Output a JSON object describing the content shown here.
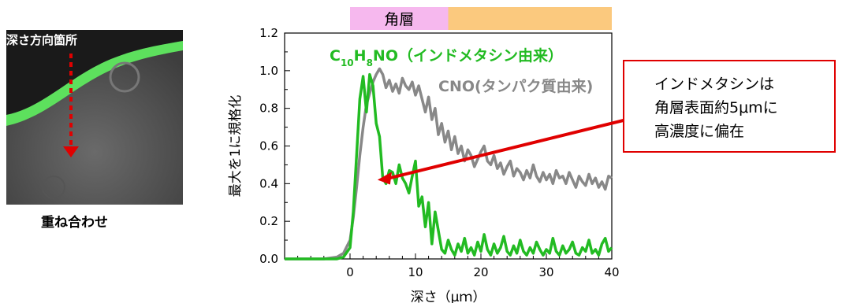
{
  "image_panel": {
    "label": "深さ方向箇所",
    "caption": "重ね合わせ"
  },
  "callout": {
    "lines": [
      "インドメタシンは",
      "角層表面約5μmに",
      "高濃度に偏在"
    ],
    "border_color": "#e00000"
  },
  "chart_data": {
    "type": "line",
    "xlabel": "深さ（μｍ）",
    "ylabel": "最大を1に規格化",
    "xlim": [
      -10,
      40
    ],
    "ylim": [
      0,
      1.2
    ],
    "xticks": [
      "0",
      "10",
      "20",
      "30",
      "40"
    ],
    "yticks": [
      "0.0",
      "0.2",
      "0.4",
      "0.6",
      "0.8",
      "1.0",
      "1.2"
    ],
    "bands": [
      {
        "label": "角層",
        "x": [
          0,
          15
        ],
        "color": "#f6b8ee"
      },
      {
        "label": "",
        "x": [
          15,
          40
        ],
        "color": "#fbc97e"
      }
    ],
    "series": [
      {
        "name_parts": [
          "C",
          "10",
          "H",
          "8",
          "NO（インドメタシン由来）"
        ],
        "color": "#22bb22",
        "x": [
          -10,
          -8,
          -6,
          -4,
          -2,
          -1,
          0,
          0.5,
          1,
          1.5,
          2,
          2.5,
          3,
          3.5,
          4,
          4.5,
          5,
          5.5,
          6,
          6.5,
          7,
          7.5,
          8,
          8.5,
          9,
          9.5,
          10,
          10.5,
          11,
          11.5,
          12,
          12.5,
          13,
          13.5,
          14,
          14.5,
          15,
          15.5,
          16,
          16.5,
          17,
          17.5,
          18,
          18.5,
          19,
          19.5,
          20,
          20.5,
          21,
          21.5,
          22,
          22.5,
          23,
          23.5,
          24,
          24.5,
          25,
          25.5,
          26,
          26.5,
          27,
          27.5,
          28,
          28.5,
          29,
          29.5,
          30,
          30.5,
          31,
          31.5,
          32,
          32.5,
          33,
          33.5,
          34,
          34.5,
          35,
          35.5,
          36,
          36.5,
          37,
          37.5,
          38,
          38.5,
          39,
          39.5,
          40
        ],
        "y": [
          0,
          0,
          0,
          0,
          0,
          0.01,
          0.06,
          0.25,
          0.55,
          0.85,
          0.97,
          0.78,
          0.98,
          0.92,
          0.72,
          0.65,
          0.43,
          0.4,
          0.47,
          0.46,
          0.4,
          0.5,
          0.43,
          0.4,
          0.35,
          0.44,
          0.52,
          0.28,
          0.33,
          0.17,
          0.3,
          0.08,
          0.25,
          0.15,
          0.05,
          0.03,
          0.1,
          0.05,
          0.02,
          0.08,
          0.04,
          0.11,
          0.03,
          0.06,
          0.02,
          0.09,
          0.04,
          0.13,
          0.05,
          0.02,
          0.08,
          0.03,
          0.06,
          0.12,
          0.04,
          0.02,
          0.07,
          0.03,
          0.1,
          0.04,
          0.02,
          0.06,
          0.03,
          0.09,
          0.05,
          0.02,
          0.05,
          0.03,
          0.11,
          0.04,
          0.02,
          0.07,
          0.03,
          0.05,
          0.09,
          0.03,
          0.02,
          0.06,
          0.04,
          0.1,
          0.03,
          0.05,
          0.02,
          0.08,
          0.11,
          0.04,
          0.06
        ]
      },
      {
        "name_parts": [
          "CNO(タンパク質由来)"
        ],
        "color": "#888888",
        "x": [
          -10,
          -8,
          -6,
          -4,
          -2,
          -1,
          0,
          0.5,
          1,
          1.5,
          2,
          2.5,
          3,
          3.5,
          4,
          4.5,
          5,
          5.5,
          6,
          6.5,
          7,
          7.5,
          8,
          8.5,
          9,
          9.5,
          10,
          10.5,
          11,
          11.5,
          12,
          12.5,
          13,
          13.5,
          14,
          14.5,
          15,
          15.5,
          16,
          16.5,
          17,
          17.5,
          18,
          18.5,
          19,
          19.5,
          20,
          20.5,
          21,
          21.5,
          22,
          22.5,
          23,
          23.5,
          24,
          24.5,
          25,
          25.5,
          26,
          26.5,
          27,
          27.5,
          28,
          28.5,
          29,
          29.5,
          30,
          30.5,
          31,
          31.5,
          32,
          32.5,
          33,
          33.5,
          34,
          34.5,
          35,
          35.5,
          36,
          36.5,
          37,
          37.5,
          38,
          38.5,
          39,
          39.5,
          40
        ],
        "y": [
          0,
          0,
          0,
          0,
          0.01,
          0.03,
          0.1,
          0.22,
          0.38,
          0.55,
          0.7,
          0.82,
          0.88,
          0.94,
          0.98,
          1.01,
          0.98,
          0.91,
          0.95,
          0.89,
          0.93,
          0.88,
          0.96,
          0.92,
          0.9,
          0.94,
          0.87,
          0.92,
          0.85,
          0.78,
          0.86,
          0.74,
          0.8,
          0.66,
          0.72,
          0.62,
          0.68,
          0.58,
          0.65,
          0.56,
          0.6,
          0.52,
          0.58,
          0.55,
          0.49,
          0.53,
          0.57,
          0.6,
          0.52,
          0.5,
          0.55,
          0.48,
          0.51,
          0.45,
          0.49,
          0.52,
          0.44,
          0.48,
          0.46,
          0.42,
          0.47,
          0.43,
          0.5,
          0.44,
          0.41,
          0.46,
          0.42,
          0.45,
          0.4,
          0.47,
          0.43,
          0.44,
          0.4,
          0.46,
          0.42,
          0.38,
          0.44,
          0.41,
          0.39,
          0.45,
          0.4,
          0.43,
          0.38,
          0.41,
          0.37,
          0.44,
          0.43
        ]
      }
    ],
    "annotation": {
      "x": 4.2,
      "y": 0.42,
      "color": "#e00000"
    }
  }
}
